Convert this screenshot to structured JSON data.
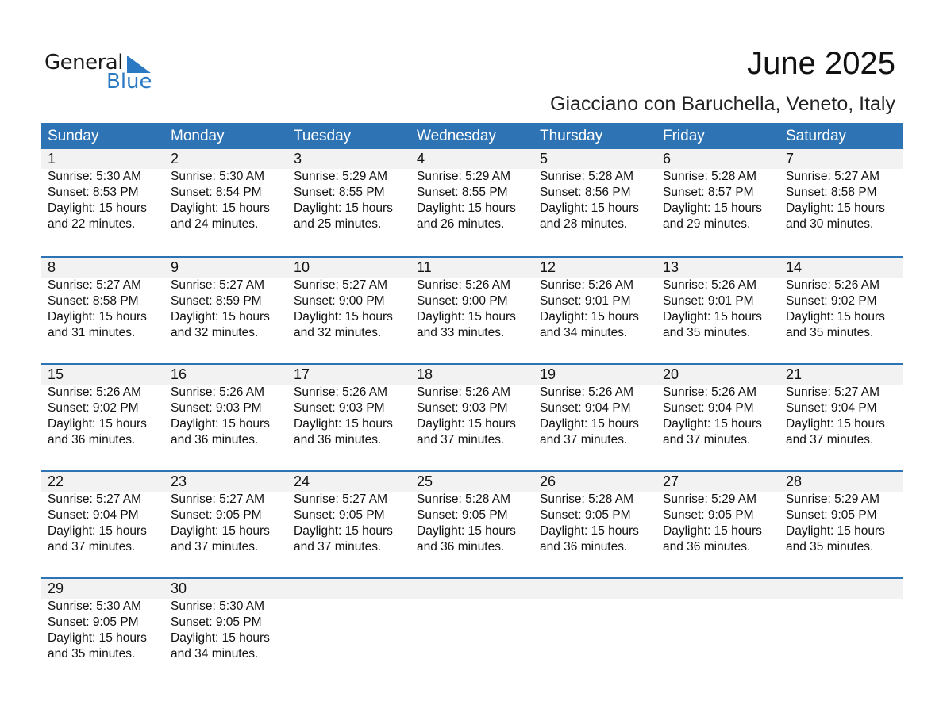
{
  "logo": {
    "line1": "General",
    "line2": "Blue",
    "accent": "#2a79c2"
  },
  "header": {
    "title": "June 2025",
    "location": "Giacciano con Baruchella, Veneto, Italy"
  },
  "colors": {
    "header_bg": "#2e74b5",
    "date_band": "#f2f2f2"
  },
  "weekdays": [
    "Sunday",
    "Monday",
    "Tuesday",
    "Wednesday",
    "Thursday",
    "Friday",
    "Saturday"
  ],
  "weeks": [
    [
      {
        "date": "1",
        "sunrise": "Sunrise: 5:30 AM",
        "sunset": "Sunset: 8:53 PM",
        "daylight": "Daylight: 15 hours",
        "minutes": "and 22 minutes."
      },
      {
        "date": "2",
        "sunrise": "Sunrise: 5:30 AM",
        "sunset": "Sunset: 8:54 PM",
        "daylight": "Daylight: 15 hours",
        "minutes": "and 24 minutes."
      },
      {
        "date": "3",
        "sunrise": "Sunrise: 5:29 AM",
        "sunset": "Sunset: 8:55 PM",
        "daylight": "Daylight: 15 hours",
        "minutes": "and 25 minutes."
      },
      {
        "date": "4",
        "sunrise": "Sunrise: 5:29 AM",
        "sunset": "Sunset: 8:55 PM",
        "daylight": "Daylight: 15 hours",
        "minutes": "and 26 minutes."
      },
      {
        "date": "5",
        "sunrise": "Sunrise: 5:28 AM",
        "sunset": "Sunset: 8:56 PM",
        "daylight": "Daylight: 15 hours",
        "minutes": "and 28 minutes."
      },
      {
        "date": "6",
        "sunrise": "Sunrise: 5:28 AM",
        "sunset": "Sunset: 8:57 PM",
        "daylight": "Daylight: 15 hours",
        "minutes": "and 29 minutes."
      },
      {
        "date": "7",
        "sunrise": "Sunrise: 5:27 AM",
        "sunset": "Sunset: 8:58 PM",
        "daylight": "Daylight: 15 hours",
        "minutes": "and 30 minutes."
      }
    ],
    [
      {
        "date": "8",
        "sunrise": "Sunrise: 5:27 AM",
        "sunset": "Sunset: 8:58 PM",
        "daylight": "Daylight: 15 hours",
        "minutes": "and 31 minutes."
      },
      {
        "date": "9",
        "sunrise": "Sunrise: 5:27 AM",
        "sunset": "Sunset: 8:59 PM",
        "daylight": "Daylight: 15 hours",
        "minutes": "and 32 minutes."
      },
      {
        "date": "10",
        "sunrise": "Sunrise: 5:27 AM",
        "sunset": "Sunset: 9:00 PM",
        "daylight": "Daylight: 15 hours",
        "minutes": "and 32 minutes."
      },
      {
        "date": "11",
        "sunrise": "Sunrise: 5:26 AM",
        "sunset": "Sunset: 9:00 PM",
        "daylight": "Daylight: 15 hours",
        "minutes": "and 33 minutes."
      },
      {
        "date": "12",
        "sunrise": "Sunrise: 5:26 AM",
        "sunset": "Sunset: 9:01 PM",
        "daylight": "Daylight: 15 hours",
        "minutes": "and 34 minutes."
      },
      {
        "date": "13",
        "sunrise": "Sunrise: 5:26 AM",
        "sunset": "Sunset: 9:01 PM",
        "daylight": "Daylight: 15 hours",
        "minutes": "and 35 minutes."
      },
      {
        "date": "14",
        "sunrise": "Sunrise: 5:26 AM",
        "sunset": "Sunset: 9:02 PM",
        "daylight": "Daylight: 15 hours",
        "minutes": "and 35 minutes."
      }
    ],
    [
      {
        "date": "15",
        "sunrise": "Sunrise: 5:26 AM",
        "sunset": "Sunset: 9:02 PM",
        "daylight": "Daylight: 15 hours",
        "minutes": "and 36 minutes."
      },
      {
        "date": "16",
        "sunrise": "Sunrise: 5:26 AM",
        "sunset": "Sunset: 9:03 PM",
        "daylight": "Daylight: 15 hours",
        "minutes": "and 36 minutes."
      },
      {
        "date": "17",
        "sunrise": "Sunrise: 5:26 AM",
        "sunset": "Sunset: 9:03 PM",
        "daylight": "Daylight: 15 hours",
        "minutes": "and 36 minutes."
      },
      {
        "date": "18",
        "sunrise": "Sunrise: 5:26 AM",
        "sunset": "Sunset: 9:03 PM",
        "daylight": "Daylight: 15 hours",
        "minutes": "and 37 minutes."
      },
      {
        "date": "19",
        "sunrise": "Sunrise: 5:26 AM",
        "sunset": "Sunset: 9:04 PM",
        "daylight": "Daylight: 15 hours",
        "minutes": "and 37 minutes."
      },
      {
        "date": "20",
        "sunrise": "Sunrise: 5:26 AM",
        "sunset": "Sunset: 9:04 PM",
        "daylight": "Daylight: 15 hours",
        "minutes": "and 37 minutes."
      },
      {
        "date": "21",
        "sunrise": "Sunrise: 5:27 AM",
        "sunset": "Sunset: 9:04 PM",
        "daylight": "Daylight: 15 hours",
        "minutes": "and 37 minutes."
      }
    ],
    [
      {
        "date": "22",
        "sunrise": "Sunrise: 5:27 AM",
        "sunset": "Sunset: 9:04 PM",
        "daylight": "Daylight: 15 hours",
        "minutes": "and 37 minutes."
      },
      {
        "date": "23",
        "sunrise": "Sunrise: 5:27 AM",
        "sunset": "Sunset: 9:05 PM",
        "daylight": "Daylight: 15 hours",
        "minutes": "and 37 minutes."
      },
      {
        "date": "24",
        "sunrise": "Sunrise: 5:27 AM",
        "sunset": "Sunset: 9:05 PM",
        "daylight": "Daylight: 15 hours",
        "minutes": "and 37 minutes."
      },
      {
        "date": "25",
        "sunrise": "Sunrise: 5:28 AM",
        "sunset": "Sunset: 9:05 PM",
        "daylight": "Daylight: 15 hours",
        "minutes": "and 36 minutes."
      },
      {
        "date": "26",
        "sunrise": "Sunrise: 5:28 AM",
        "sunset": "Sunset: 9:05 PM",
        "daylight": "Daylight: 15 hours",
        "minutes": "and 36 minutes."
      },
      {
        "date": "27",
        "sunrise": "Sunrise: 5:29 AM",
        "sunset": "Sunset: 9:05 PM",
        "daylight": "Daylight: 15 hours",
        "minutes": "and 36 minutes."
      },
      {
        "date": "28",
        "sunrise": "Sunrise: 5:29 AM",
        "sunset": "Sunset: 9:05 PM",
        "daylight": "Daylight: 15 hours",
        "minutes": "and 35 minutes."
      }
    ],
    [
      {
        "date": "29",
        "sunrise": "Sunrise: 5:30 AM",
        "sunset": "Sunset: 9:05 PM",
        "daylight": "Daylight: 15 hours",
        "minutes": "and 35 minutes."
      },
      {
        "date": "30",
        "sunrise": "Sunrise: 5:30 AM",
        "sunset": "Sunset: 9:05 PM",
        "daylight": "Daylight: 15 hours",
        "minutes": "and 34 minutes."
      }
    ]
  ]
}
